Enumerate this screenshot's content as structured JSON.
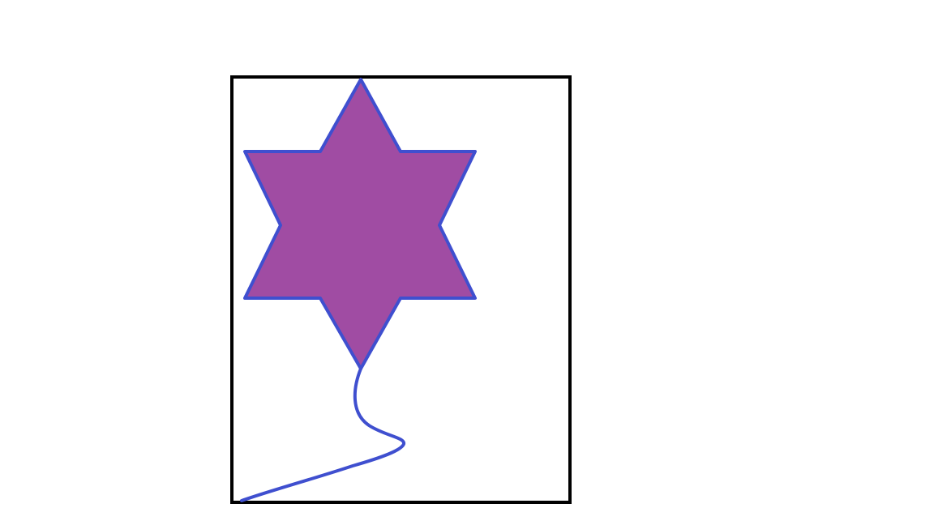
{
  "drawing": {
    "subject": "six-point-star-balloon-on-string",
    "colors": {
      "background": "#ffffff",
      "frame_stroke": "#000000",
      "star_fill": "#a04ca3",
      "star_outline": "#3f4fcf",
      "string": "#3f4fcf"
    },
    "icons": {
      "star": "six-point-star-icon",
      "string": "balloon-string-icon"
    }
  }
}
